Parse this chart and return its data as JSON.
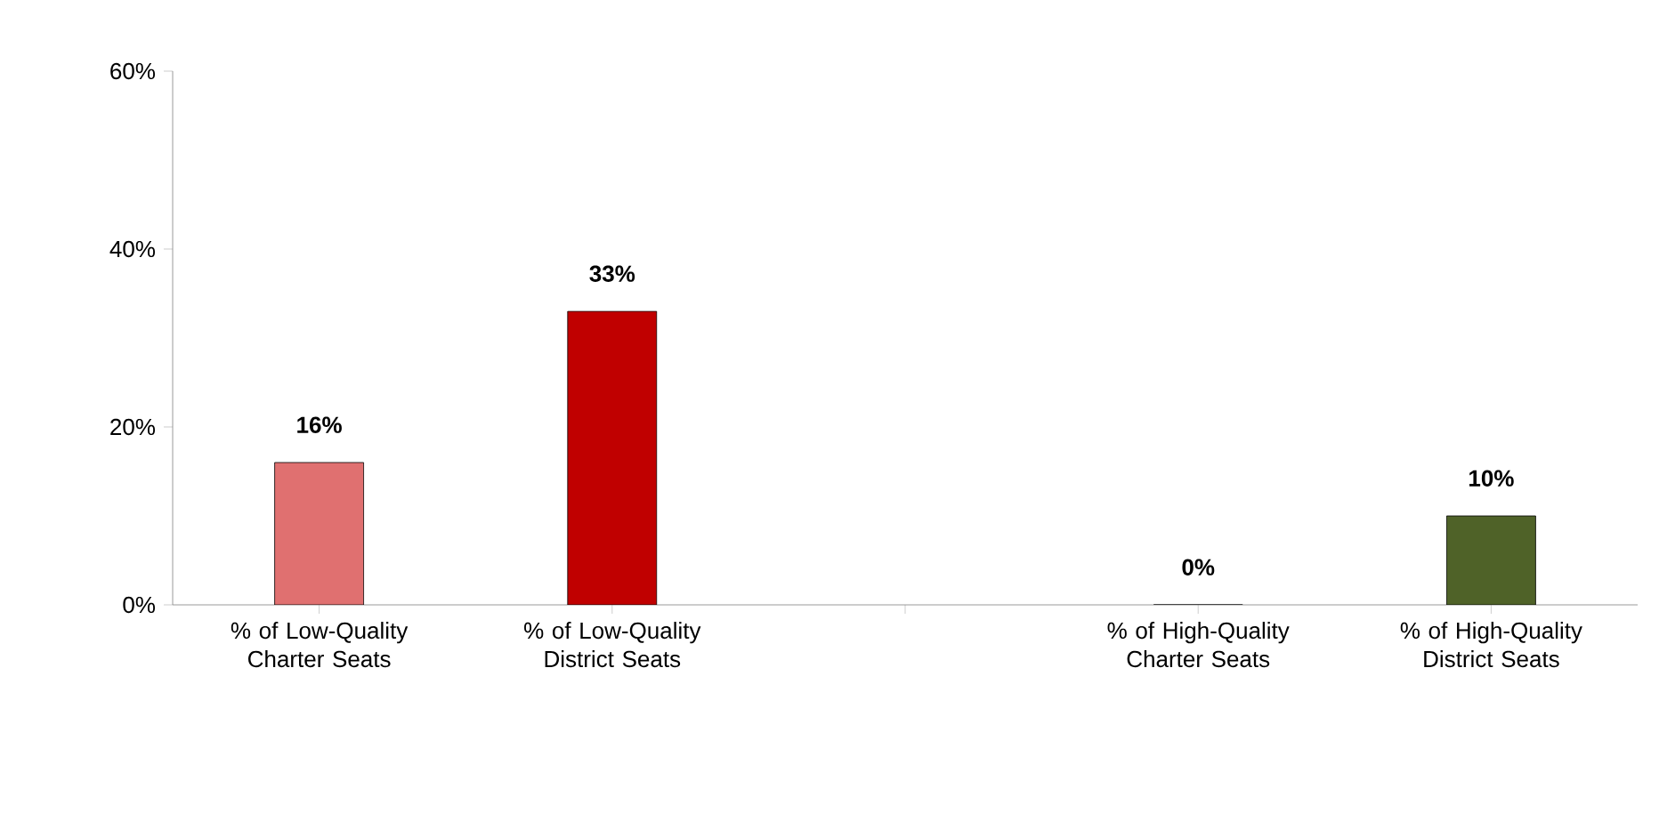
{
  "chart_data": {
    "type": "bar",
    "categories": [
      "% of Low-Quality Charter Seats",
      "% of Low-Quality District Seats",
      null,
      "% of High-Quality Charter Seats",
      "% of High-Quality District Seats"
    ],
    "values": [
      16,
      33,
      null,
      0,
      10
    ],
    "colors": [
      "#e07070",
      "#c00000",
      null,
      "#c00000",
      "#4f6228"
    ],
    "value_labels": [
      "16%",
      "33%",
      null,
      "0%",
      "10%"
    ],
    "ylim": [
      0,
      60
    ],
    "yticks": [
      {
        "value": 0,
        "label": "0%"
      },
      {
        "value": 20,
        "label": "20%"
      },
      {
        "value": 40,
        "label": "40%"
      },
      {
        "value": 60,
        "label": "60%"
      }
    ],
    "grid": false
  }
}
